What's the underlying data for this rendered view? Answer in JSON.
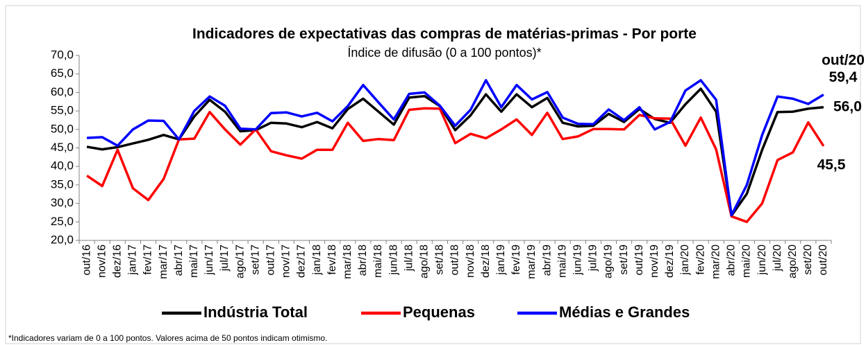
{
  "chart_data": {
    "type": "line",
    "title": "Indicadores de expectativas das compras de matérias-primas - Por porte",
    "subtitle": "Índice de difusão (0 a 100 pontos)*",
    "annotation": "out/20",
    "annotation_color": "#0000ff",
    "footnote": "*Indicadores variam de 0 a 100 pontos. Valores acima de 50 pontos indicam otimismo.",
    "categories": [
      "out/16",
      "nov/16",
      "dez/16",
      "jan/17",
      "fev/17",
      "mar/17",
      "abr/17",
      "mai/17",
      "jun/17",
      "jul/17",
      "ago/17",
      "set/17",
      "out/17",
      "nov/17",
      "dez/17",
      "jan/18",
      "fev/18",
      "mar/18",
      "abr/18",
      "mai/18",
      "jun/18",
      "jul/18",
      "ago/18",
      "set/18",
      "out/18",
      "nov/18",
      "dez/18",
      "jan/19",
      "fev/19",
      "mar/19",
      "abr/19",
      "mai/19",
      "jun/19",
      "jul/19",
      "ago/19",
      "set/19",
      "out/19",
      "nov/19",
      "dez/19",
      "jan/20",
      "fev/20",
      "mar/20",
      "abr/20",
      "mai/20",
      "jun/20",
      "jul/20",
      "ago/20",
      "set/20",
      "out/20"
    ],
    "series": [
      {
        "name": "Indústria Total",
        "color": "#000000",
        "values": [
          45.3,
          44.6,
          45.2,
          46.2,
          47.2,
          48.5,
          47.3,
          53.5,
          58.0,
          54.8,
          49.5,
          49.8,
          51.8,
          51.6,
          50.6,
          52.0,
          50.3,
          55.5,
          58.3,
          54.8,
          51.3,
          58.6,
          59.0,
          56.3,
          49.8,
          53.8,
          59.5,
          54.8,
          59.5,
          56.0,
          58.5,
          51.8,
          50.8,
          51.0,
          54.2,
          52.0,
          55.5,
          52.8,
          51.8,
          56.8,
          61.0,
          54.8,
          26.7,
          32.6,
          44.5,
          54.7,
          54.8,
          55.6,
          56.0
        ],
        "value_labels": [
          null,
          null,
          null,
          null,
          null,
          null,
          null,
          null,
          null,
          null,
          null,
          null,
          null,
          null,
          null,
          null,
          null,
          null,
          null,
          null,
          null,
          null,
          null,
          null,
          null,
          null,
          null,
          null,
          null,
          null,
          null,
          null,
          null,
          null,
          null,
          null,
          null,
          null,
          null,
          null,
          null,
          null,
          null,
          null,
          null,
          null,
          null,
          null,
          "56,0"
        ]
      },
      {
        "name": "Pequenas",
        "color": "#ff0000",
        "values": [
          37.5,
          34.7,
          44.5,
          34.1,
          30.9,
          36.6,
          47.3,
          47.5,
          54.7,
          50.0,
          45.9,
          50.0,
          44.1,
          43.0,
          42.1,
          44.5,
          44.5,
          51.8,
          46.9,
          47.4,
          47.1,
          55.3,
          55.7,
          55.6,
          46.3,
          48.8,
          47.6,
          50.0,
          52.7,
          48.5,
          54.5,
          47.4,
          48.1,
          50.1,
          50.1,
          50.0,
          53.9,
          53.0,
          52.9,
          45.6,
          53.2,
          44.6,
          26.5,
          25.0,
          30.0,
          41.7,
          43.8,
          51.9,
          45.5
        ],
        "value_labels": [
          null,
          null,
          null,
          null,
          null,
          null,
          null,
          null,
          null,
          null,
          null,
          null,
          null,
          null,
          null,
          null,
          null,
          null,
          null,
          null,
          null,
          null,
          null,
          null,
          null,
          null,
          null,
          null,
          null,
          null,
          null,
          null,
          null,
          null,
          null,
          null,
          null,
          null,
          null,
          null,
          null,
          null,
          null,
          null,
          null,
          null,
          null,
          null,
          "45,5"
        ]
      },
      {
        "name": "Médias e Grandes",
        "color": "#0000ff",
        "values": [
          47.7,
          47.9,
          45.6,
          50.0,
          52.4,
          52.3,
          47.3,
          55.0,
          58.9,
          56.4,
          50.2,
          50.0,
          54.4,
          54.6,
          53.5,
          54.5,
          52.2,
          56.3,
          62.0,
          57.3,
          52.7,
          59.6,
          60.0,
          56.4,
          51.0,
          55.3,
          63.3,
          56.0,
          62.0,
          58.1,
          60.1,
          53.2,
          51.5,
          51.4,
          55.4,
          52.5,
          56.0,
          50.0,
          52.0,
          60.5,
          63.3,
          58.0,
          26.8,
          35.0,
          48.5,
          58.9,
          58.3,
          56.9,
          59.4
        ],
        "value_labels": [
          null,
          null,
          null,
          null,
          null,
          null,
          null,
          null,
          null,
          null,
          null,
          null,
          null,
          null,
          null,
          null,
          null,
          null,
          null,
          null,
          null,
          null,
          null,
          null,
          null,
          null,
          null,
          null,
          null,
          null,
          null,
          null,
          null,
          null,
          null,
          null,
          null,
          null,
          null,
          null,
          null,
          null,
          null,
          null,
          null,
          null,
          null,
          null,
          "59,4"
        ]
      }
    ],
    "ylim": [
      20,
      70
    ],
    "yticks": [
      {
        "value": 20,
        "label": "20,0"
      },
      {
        "value": 25,
        "label": "25,0"
      },
      {
        "value": 30,
        "label": "30,0"
      },
      {
        "value": 35,
        "label": "35,0"
      },
      {
        "value": 40,
        "label": "40,0"
      },
      {
        "value": 45,
        "label": "45,0"
      },
      {
        "value": 50,
        "label": "50,0"
      },
      {
        "value": 55,
        "label": "55,0"
      },
      {
        "value": 60,
        "label": "60,0"
      },
      {
        "value": 65,
        "label": "65,0"
      },
      {
        "value": 70,
        "label": "70,0"
      }
    ],
    "grid": false,
    "legend": "bottom"
  }
}
